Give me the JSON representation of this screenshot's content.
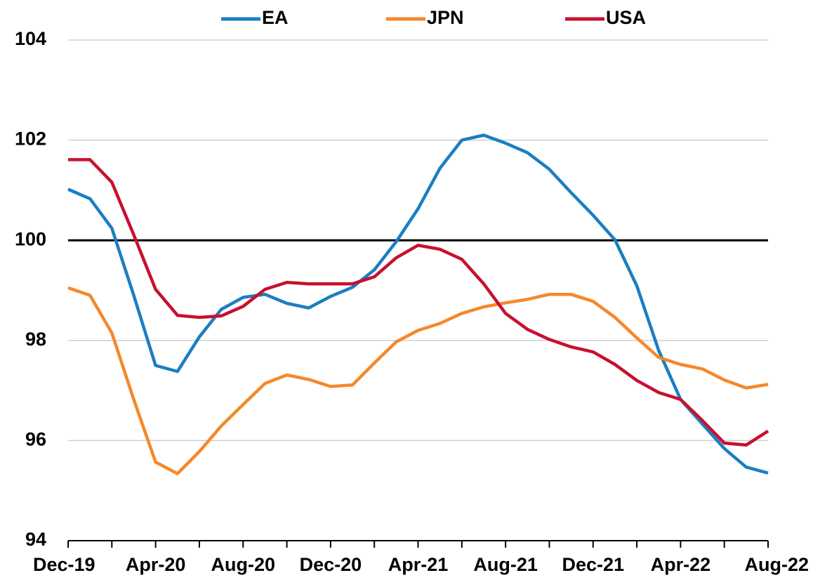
{
  "chart_data": {
    "type": "line",
    "categories": [
      "Dec-19",
      null,
      null,
      null,
      "Apr-20",
      null,
      null,
      null,
      "Aug-20",
      null,
      null,
      null,
      "Dec-20",
      null,
      null,
      null,
      "Apr-21",
      null,
      null,
      null,
      "Aug-21",
      null,
      null,
      null,
      "Dec-21",
      null,
      null,
      null,
      "Apr-22",
      null,
      null,
      null,
      "Aug-22"
    ],
    "series": [
      {
        "name": "EA",
        "color": "#1b7ec2",
        "values": [
          101.02,
          100.83,
          100.24,
          98.9,
          97.5,
          97.38,
          98.07,
          98.62,
          98.86,
          98.92,
          98.74,
          98.65,
          98.88,
          99.06,
          99.41,
          99.97,
          100.63,
          101.44,
          102.0,
          102.1,
          101.94,
          101.75,
          101.42,
          100.95,
          100.5,
          100.01,
          99.09,
          97.8,
          96.82,
          96.33,
          95.84,
          95.47,
          95.35
        ]
      },
      {
        "name": "JPN",
        "color": "#f5882a",
        "values": [
          99.05,
          98.9,
          98.15,
          96.82,
          95.57,
          95.34,
          95.78,
          96.29,
          96.72,
          97.14,
          97.31,
          97.22,
          97.08,
          97.11,
          97.55,
          97.97,
          98.2,
          98.34,
          98.54,
          98.67,
          98.75,
          98.82,
          98.92,
          98.92,
          98.78,
          98.46,
          98.05,
          97.66,
          97.52,
          97.43,
          97.21,
          97.05,
          97.12
        ]
      },
      {
        "name": "USA",
        "color": "#c8102e",
        "values": [
          101.61,
          101.61,
          101.16,
          100.11,
          99.02,
          98.5,
          98.46,
          98.49,
          98.68,
          99.02,
          99.16,
          99.13,
          99.13,
          99.13,
          99.27,
          99.65,
          99.9,
          99.82,
          99.62,
          99.13,
          98.54,
          98.22,
          98.02,
          97.87,
          97.77,
          97.52,
          97.2,
          96.96,
          96.82,
          96.4,
          95.95,
          95.91,
          96.19
        ]
      }
    ],
    "ylim": [
      94,
      104
    ],
    "yticks": [
      94,
      96,
      98,
      100,
      102,
      104
    ],
    "grid": true,
    "reference_line": 100,
    "legend": "top"
  }
}
